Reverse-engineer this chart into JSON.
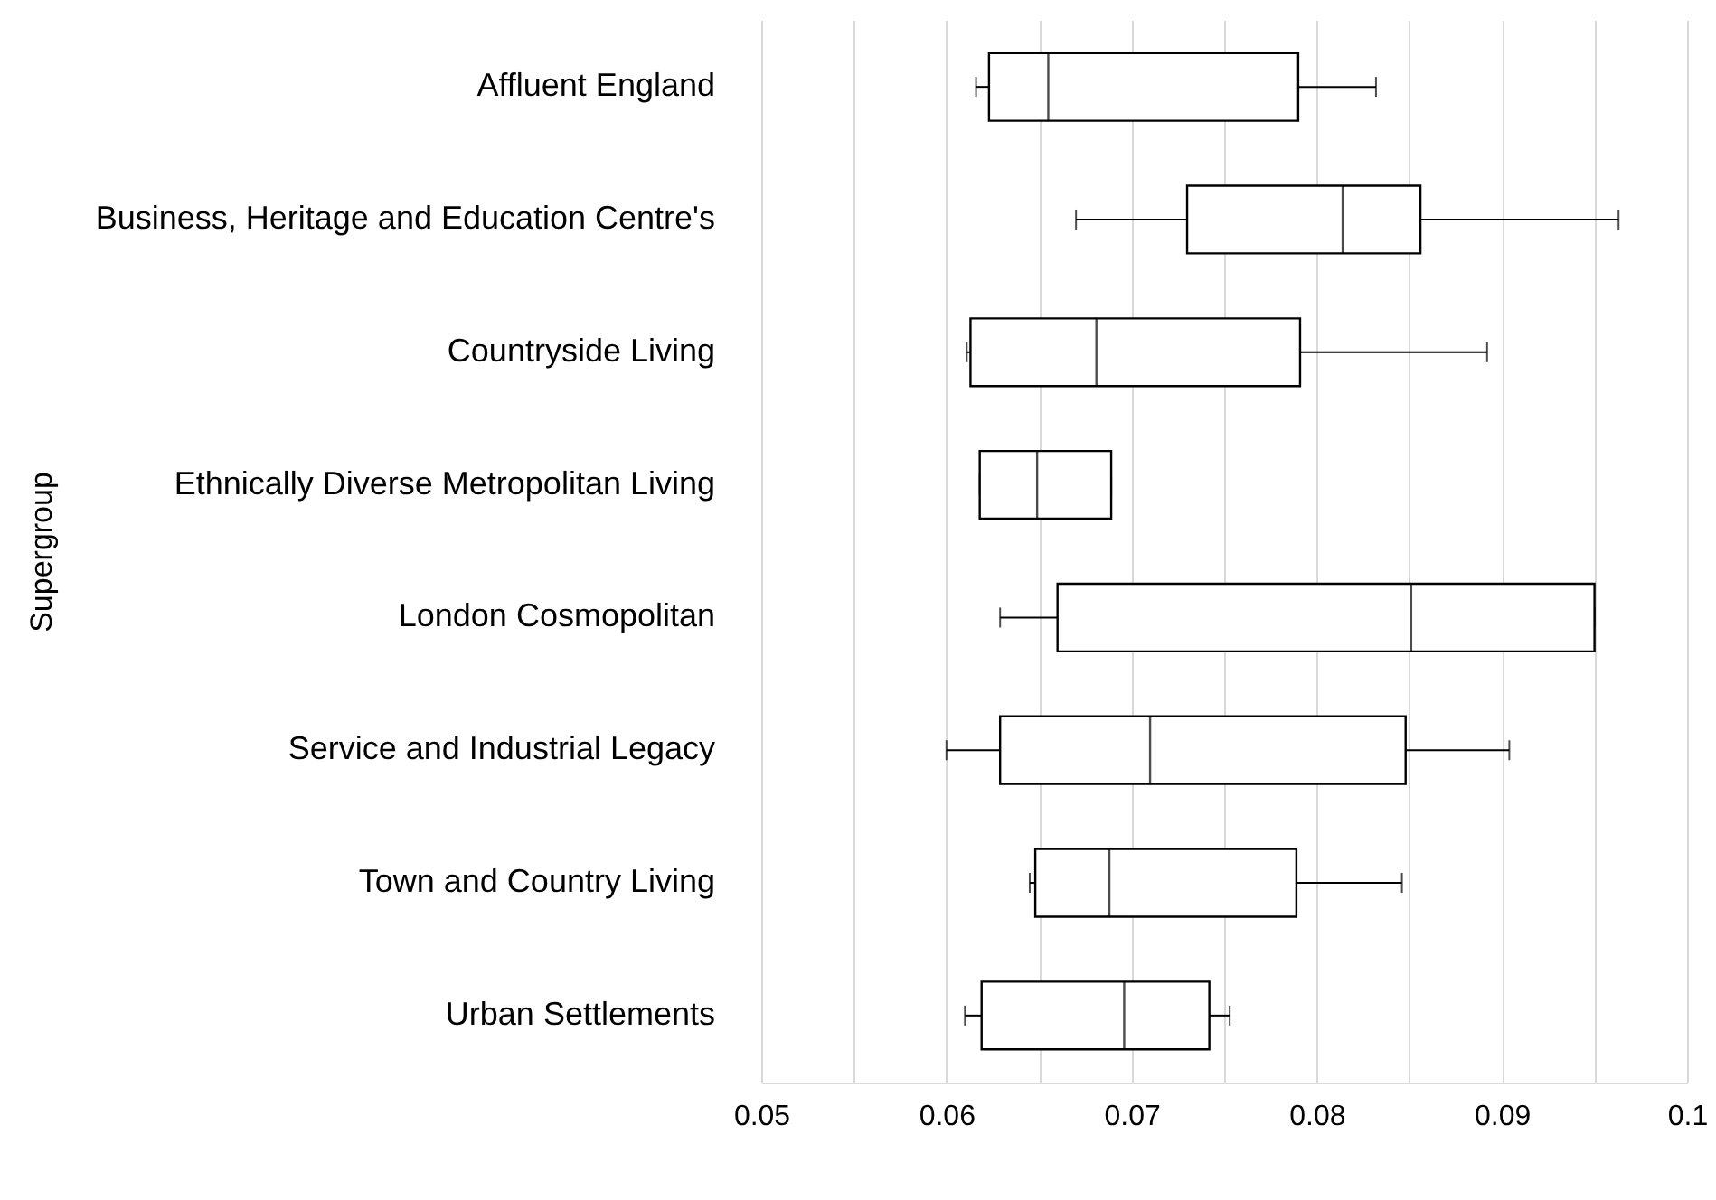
{
  "chart_data": {
    "type": "box",
    "orientation": "horizontal",
    "ylabel": "Supergroup",
    "categories": [
      "Affluent England",
      "Business, Heritage and Education Centre's",
      "Countryside Living",
      "Ethnically Diverse Metropolitan Living",
      "London Cosmopolitan",
      "Service and Industrial Legacy",
      "Town and Country Living",
      "Urban Settlements"
    ],
    "boxes": [
      {
        "low": 0.0616,
        "q1": 0.0623,
        "median": 0.0655,
        "q3": 0.079,
        "high": 0.0832
      },
      {
        "low": 0.067,
        "q1": 0.073,
        "median": 0.0814,
        "q3": 0.0856,
        "high": 0.0963
      },
      {
        "low": 0.0611,
        "q1": 0.0613,
        "median": 0.0681,
        "q3": 0.0791,
        "high": 0.0892
      },
      {
        "low": 0.0618,
        "q1": 0.0618,
        "median": 0.0649,
        "q3": 0.0689,
        "high": 0.0689
      },
      {
        "low": 0.0629,
        "q1": 0.066,
        "median": 0.0851,
        "q3": 0.095,
        "high": 0.095
      },
      {
        "low": 0.06,
        "q1": 0.0629,
        "median": 0.071,
        "q3": 0.0848,
        "high": 0.0904
      },
      {
        "low": 0.0645,
        "q1": 0.0648,
        "median": 0.0688,
        "q3": 0.0789,
        "high": 0.0846
      },
      {
        "low": 0.061,
        "q1": 0.0619,
        "median": 0.0696,
        "q3": 0.0742,
        "high": 0.0753
      }
    ],
    "xlim": [
      0.05,
      0.1
    ],
    "xticks": [
      0.05,
      {
        "value": 0.055,
        "label": null
      },
      0.06,
      {
        "value": 0.065,
        "label": null
      },
      0.07,
      {
        "value": 0.075,
        "label": null
      },
      0.08,
      {
        "value": 0.085,
        "label": null
      },
      0.09,
      {
        "value": 0.095,
        "label": null
      },
      {
        "value": 0.1,
        "label": "0.1"
      }
    ],
    "grid": "x"
  }
}
